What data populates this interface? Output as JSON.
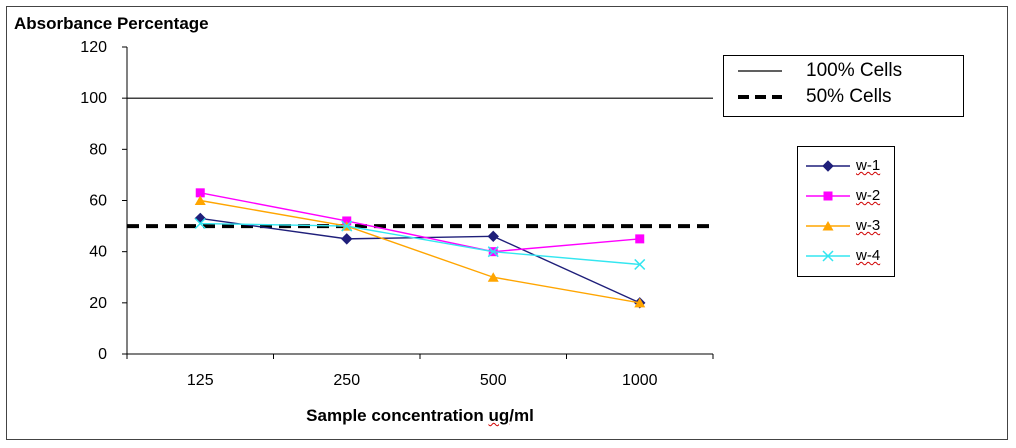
{
  "chart_data": {
    "type": "line",
    "ylabel": "Absorbance Percentage",
    "xlabel": "Sample concentration ug/ml",
    "categories": [
      "125",
      "250",
      "500",
      "1000"
    ],
    "ylim": [
      0,
      120
    ],
    "yticks": [
      0,
      20,
      40,
      60,
      80,
      100,
      120
    ],
    "reference_lines": [
      {
        "name": "100% Cells",
        "value": 100,
        "style": "solid"
      },
      {
        "name": "50% Cells",
        "value": 50,
        "style": "dashed"
      }
    ],
    "series": [
      {
        "name": "w-1",
        "values": [
          53,
          45,
          46,
          20
        ],
        "color": "#1f1f7a",
        "marker": "diamond"
      },
      {
        "name": "w-2",
        "values": [
          63,
          52,
          40,
          45
        ],
        "color": "#ff00ff",
        "marker": "square"
      },
      {
        "name": "w-3",
        "values": [
          60,
          50,
          30,
          20
        ],
        "color": "#ffa500",
        "marker": "triangle"
      },
      {
        "name": "w-4",
        "values": [
          51,
          50,
          40,
          35
        ],
        "color": "#33e6f0",
        "marker": "x"
      }
    ],
    "grid": false,
    "legend_placement": "right"
  }
}
